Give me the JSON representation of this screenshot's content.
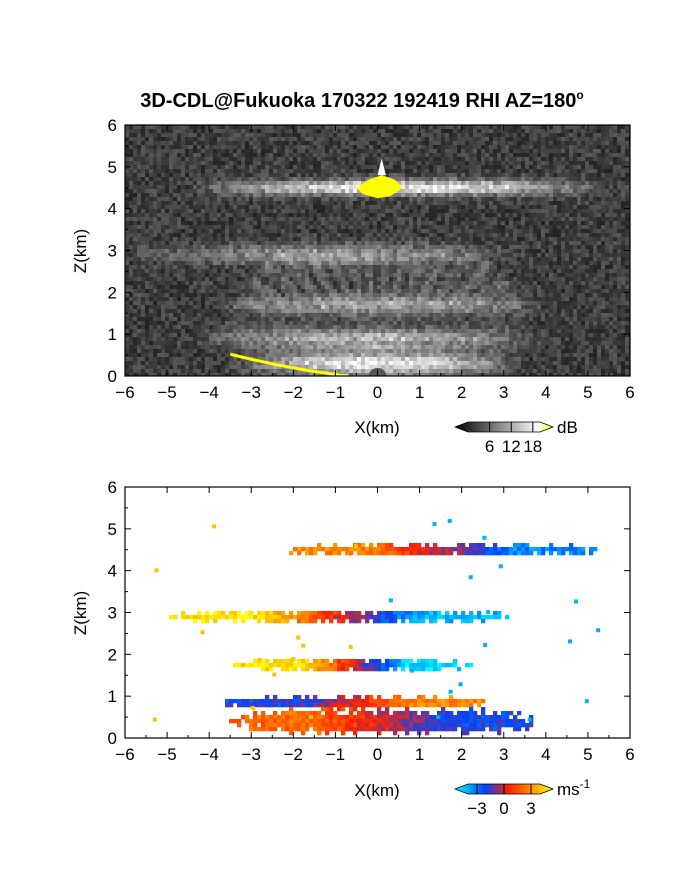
{
  "figure_title": "3D-CDL@Fukuoka 170322 192419 RHI AZ=180",
  "degree_symbol": "o",
  "chart_data": [
    {
      "type": "heatmap",
      "name": "backscatter",
      "xlabel": "X(km)",
      "ylabel": "Z(km)",
      "xlim": [
        -6,
        6
      ],
      "ylim": [
        0,
        6
      ],
      "xticks": [
        "-6",
        "-5",
        "-4",
        "-3",
        "-2",
        "-1",
        "0",
        "1",
        "2",
        "3",
        "4",
        "5",
        "6"
      ],
      "yticks": [
        "0",
        "1",
        "2",
        "3",
        "4",
        "5",
        "6"
      ],
      "colorbar": {
        "unit": "dB",
        "ticks": [
          "6",
          "12",
          "18"
        ],
        "tick_values": [
          6,
          12,
          18
        ],
        "range": [
          0,
          20
        ],
        "colors": [
          "#000000",
          "#ffffff",
          "#ffff00"
        ]
      },
      "features": [
        {
          "label": "layer",
          "z_km": 4.5,
          "x_range": [
            -4.5,
            5.5
          ],
          "peak_dB": 20
        },
        {
          "label": "layer",
          "z_km": 2.9,
          "x_range": [
            -6,
            3.5
          ],
          "peak_dB": 10
        },
        {
          "label": "layer",
          "z_km": 1.7,
          "x_range": [
            -4.0,
            4.0
          ],
          "peak_dB": 10
        },
        {
          "label": "layer",
          "z_km": 0.9,
          "x_range": [
            -4.5,
            4.0
          ],
          "peak_dB": 14
        },
        {
          "label": "boundary layer",
          "z_km": 0.3,
          "x_range": [
            -3.5,
            3.5
          ],
          "peak_dB": 16
        }
      ]
    },
    {
      "type": "heatmap",
      "name": "doppler velocity",
      "xlabel": "X(km)",
      "ylabel": "Z(km)",
      "xlim": [
        -6,
        6
      ],
      "ylim": [
        0,
        6
      ],
      "xticks": [
        "-6",
        "-5",
        "-4",
        "-3",
        "-2",
        "-1",
        "0",
        "1",
        "2",
        "3",
        "4",
        "5",
        "6"
      ],
      "yticks": [
        "0",
        "1",
        "2",
        "3",
        "4",
        "5",
        "6"
      ],
      "colorbar": {
        "unit": "ms",
        "unit_exp": "-1",
        "ticks": [
          "-3",
          "0",
          "3"
        ],
        "tick_values": [
          -3,
          0,
          3
        ],
        "range": [
          -4,
          4
        ],
        "colors": [
          "#00ffff",
          "#0044ff",
          "#ff0000",
          "#ffff00"
        ]
      },
      "features": [
        {
          "label": "layer",
          "z_km": 4.5,
          "x_range": [
            -2.9,
            6.0
          ],
          "v_left": 2.0,
          "v_right": -2.5
        },
        {
          "label": "layer",
          "z_km": 2.9,
          "x_range": [
            -5.6,
            3.8
          ],
          "v_left": 3.5,
          "v_right": -3.0
        },
        {
          "label": "layer",
          "z_km": 1.75,
          "x_range": [
            -3.8,
            2.7
          ],
          "v_left": 3.5,
          "v_right": -3.5
        },
        {
          "label": "layer",
          "z_km": 0.85,
          "x_range": [
            -4.2,
            3.2
          ],
          "v_left": -1.5,
          "v_right": 2.0
        },
        {
          "label": "layer",
          "z_km": 0.4,
          "x_range": [
            -4.0,
            4.3
          ],
          "v_left": 1.5,
          "v_right": -1.5
        }
      ]
    }
  ]
}
